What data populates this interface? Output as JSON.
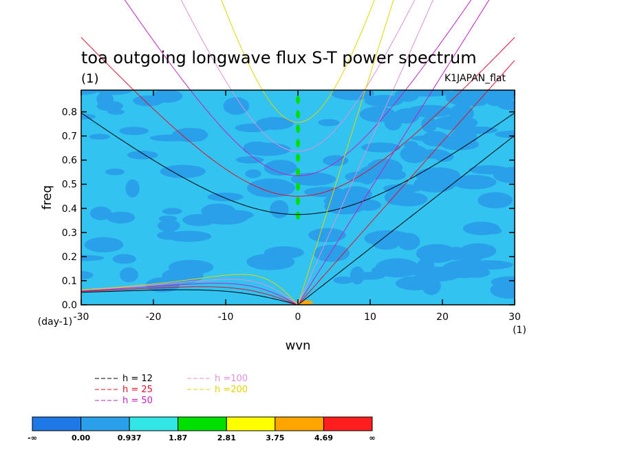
{
  "chart_data": {
    "type": "heatmap",
    "title": "toa outgoing longwave flux S-T power spectrum",
    "unit_label": "(1)",
    "source_label": "K1JAPAN_flat",
    "xlabel": "wvn",
    "ylabel": "freq",
    "x_unit": "(1)",
    "y_unit": "(day-1)",
    "xlim": [
      -30,
      30
    ],
    "ylim": [
      0,
      0.89
    ],
    "xticks": [
      -30,
      -20,
      -10,
      0,
      10,
      20,
      30
    ],
    "xtick_labels": [
      "-30",
      "-20",
      "-10",
      "0",
      "10",
      "20",
      "30"
    ],
    "yticks": [
      0.0,
      0.1,
      0.2,
      0.3,
      0.4,
      0.5,
      0.6,
      0.7,
      0.8
    ],
    "ytick_labels": [
      "0.0",
      "0.1",
      "0.2",
      "0.3",
      "0.4",
      "0.5",
      "0.6",
      "0.7",
      "0.8"
    ],
    "background_level_color": "#33c3f0",
    "dispersion_curves": [
      {
        "name": "h = 12",
        "h": 12,
        "color": "#000000"
      },
      {
        "name": "h = 25",
        "h": 25,
        "color": "#e0102a"
      },
      {
        "name": "h = 50",
        "h": 50,
        "color": "#c020c0"
      },
      {
        "name": "h =100",
        "h": 100,
        "color": "#e090d8"
      },
      {
        "name": "h =200",
        "h": 200,
        "color": "#e6d400"
      }
    ],
    "colorbar": {
      "labels": [
        "-∞",
        "0.00",
        "0.937",
        "1.87",
        "2.81",
        "3.75",
        "4.69",
        "∞"
      ],
      "colors": [
        "#1e78e6",
        "#2a9fea",
        "#33e6e6",
        "#00e000",
        "#ffff00",
        "#ffa500",
        "#ff1e1e"
      ]
    }
  }
}
